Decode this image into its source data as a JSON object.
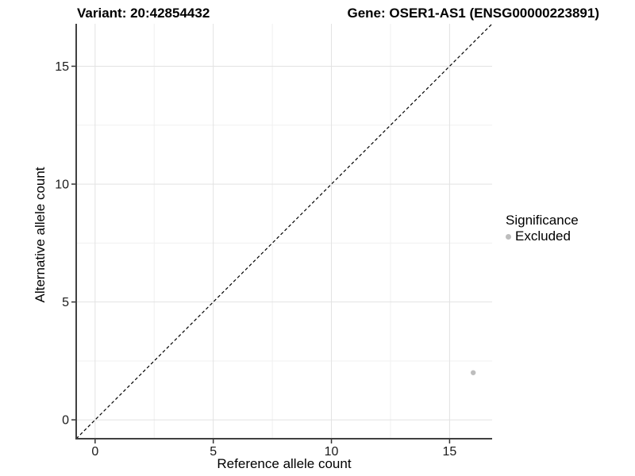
{
  "chart_data": {
    "type": "scatter",
    "title_left": "Variant: 20:42854432",
    "title_right": "Gene: OSER1-AS1 (ENSG00000223891)",
    "xlabel": "Reference allele count",
    "ylabel": "Alternative allele count",
    "xlim": [
      -0.8,
      16.8
    ],
    "ylim": [
      -0.8,
      16.8
    ],
    "x_major_ticks": [
      0,
      5,
      10,
      15
    ],
    "y_major_ticks": [
      0,
      5,
      10,
      15
    ],
    "x_minor_gridlines": [
      2.5,
      7.5,
      12.5
    ],
    "y_minor_gridlines": [
      2.5,
      7.5,
      12.5
    ],
    "grid": "major+minor",
    "legend_position": "right",
    "series": [
      {
        "name": "Excluded",
        "marker": "circle",
        "color": "#bdbdbd",
        "points": [
          {
            "x": 16,
            "y": 2
          }
        ]
      }
    ],
    "reference_line": {
      "kind": "identity y=x",
      "style": "dashed",
      "color": "#000000"
    }
  },
  "legend": {
    "title": "Significance",
    "items": [
      {
        "label": "Excluded",
        "color": "#bdbdbd",
        "marker": "circle"
      }
    ]
  },
  "colors": {
    "background": "#ffffff",
    "axis_line": "#404040",
    "tick_mark": "#333333",
    "tick_text": "#1a1a1a",
    "grid_major": "#e2e2e2",
    "grid_minor": "#f0f0f0",
    "point": "#bdbdbd"
  }
}
